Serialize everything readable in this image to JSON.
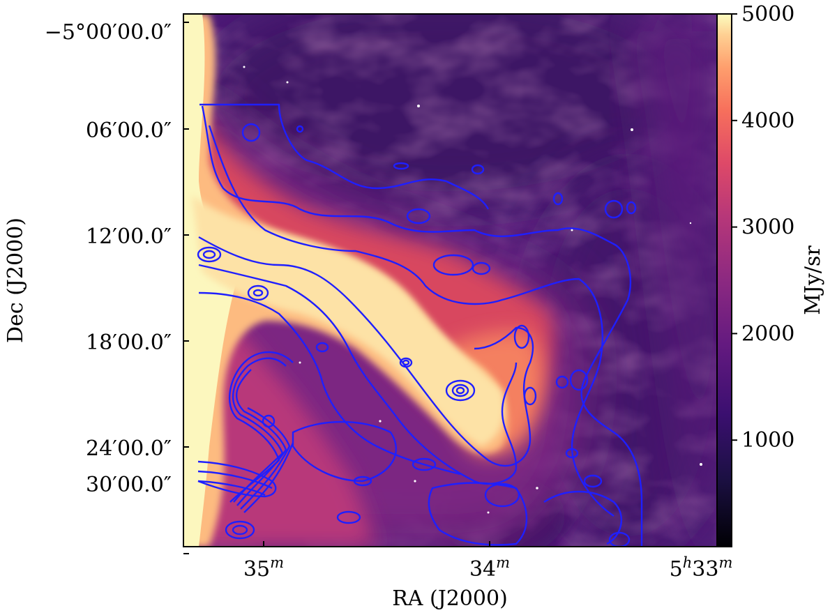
{
  "chart_data": {
    "type": "heatmap",
    "title": "",
    "xlabel": "RA (J2000)",
    "ylabel": "Dec (J2000)",
    "x_ticks": [
      {
        "value": "5h35m",
        "label": "35",
        "sup": "m"
      },
      {
        "value": "5h34m",
        "label": "34",
        "sup": "m"
      },
      {
        "value": "5h33m",
        "label": "5",
        "sup_h": "h",
        "label2": "33",
        "sup": "m"
      }
    ],
    "y_ticks": [
      {
        "value": "-5°00'00.0\"",
        "label": "−5°00′00.0″"
      },
      {
        "value": "-5°06'00.0\"",
        "label": "06′00.0″"
      },
      {
        "value": "-5°12'00.0\"",
        "label": "12′00.0″"
      },
      {
        "value": "-5°18'00.0\"",
        "label": "18′00.0″"
      },
      {
        "value": "-5°24'00.0\"",
        "label": "24′00.0″"
      },
      {
        "value": "-5°30'00.0\"",
        "label": "30′00.0″"
      }
    ],
    "colorbar": {
      "label": "MJy/sr",
      "range": [
        0,
        5000
      ],
      "ticks": [
        1000,
        2000,
        3000,
        4000,
        5000
      ],
      "tick_labels": [
        "1000",
        "2000",
        "3000",
        "4000",
        "5000"
      ],
      "colormap": "magma"
    },
    "contours": {
      "color": "#1f1fff",
      "description": "emission contours overlaid"
    },
    "grid": false
  }
}
